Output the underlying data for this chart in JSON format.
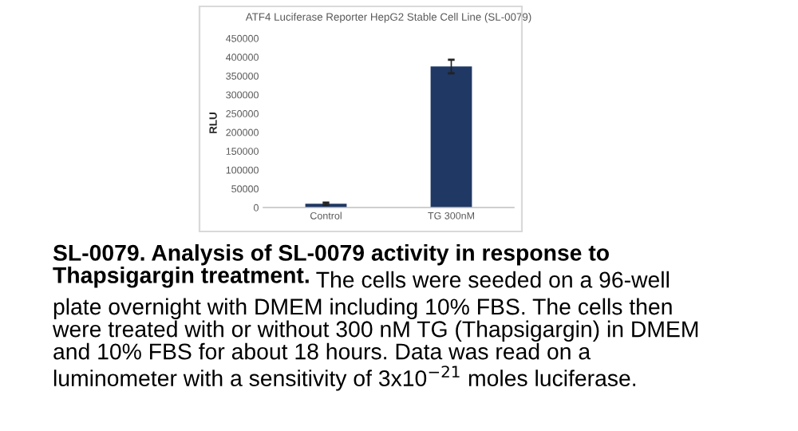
{
  "chart_data": {
    "type": "bar",
    "title": "ATF4 Luciferase Reporter HepG2 Stable Cell Line (SL-0079)",
    "ylabel": "RLU",
    "categories": [
      "Control",
      "TG 300nM"
    ],
    "values": [
      10000,
      375000
    ],
    "errors": [
      3000,
      18000
    ],
    "color": "#1f3864",
    "ylim": [
      0,
      450000
    ],
    "yticks": [
      0,
      50000,
      100000,
      150000,
      200000,
      250000,
      300000,
      350000,
      400000,
      450000
    ],
    "grid": false,
    "annotations": [
      "SL-0079. Analysis of SL-0079 activity in response to\nThapsigargin treatment.",
      "The cells were seeded on a 96-well\nplate overnight with DMEM including 10% FBS. The cells then\nwere treated with or without 300 nM TG (Thapsigargin) in DMEM\nand 10% FBS for about 18 hours. Data was read on a\nluminometer with a sensitivity of 3x10$^{−21}$ moles luciferase."
    ]
  }
}
